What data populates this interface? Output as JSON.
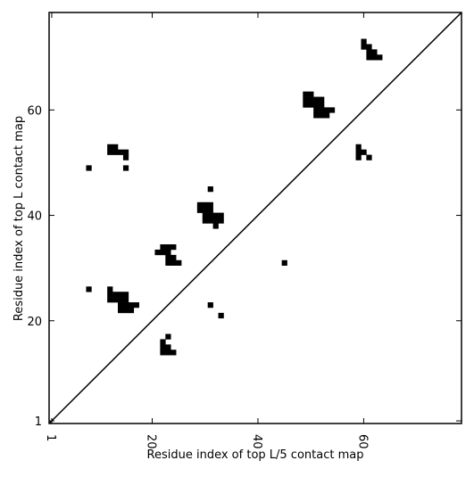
{
  "chart_data": {
    "type": "scatter",
    "marker": "square",
    "color": "#000000",
    "xlabel": "Residue index of top L/5 contact map",
    "ylabel": "Residue index of top L contact map",
    "xlim": [
      0.5,
      78.5
    ],
    "ylim": [
      0.5,
      78.5
    ],
    "xticks": [
      1,
      20,
      40,
      60
    ],
    "yticks": [
      1,
      20,
      40,
      60
    ],
    "diagonal": true,
    "x": [
      8,
      8,
      15,
      12,
      13,
      12,
      13,
      14,
      15,
      15,
      12,
      12,
      13,
      14,
      15,
      12,
      13,
      14,
      15,
      14,
      15,
      16,
      17,
      14,
      15,
      16,
      22,
      23,
      24,
      21,
      22,
      23,
      23,
      24,
      23,
      24,
      25,
      23,
      22,
      22,
      23,
      22,
      23,
      24,
      31,
      29,
      30,
      31,
      29,
      30,
      31,
      30,
      31,
      32,
      33,
      30,
      31,
      32,
      33,
      32,
      31,
      33,
      45,
      49,
      50,
      49,
      50,
      51,
      52,
      49,
      50,
      51,
      52,
      51,
      52,
      53,
      54,
      51,
      52,
      53,
      59,
      59,
      60,
      59,
      61,
      60,
      60,
      61,
      61,
      62,
      61,
      62,
      63
    ],
    "y": [
      49,
      26,
      49,
      53,
      53,
      52,
      52,
      52,
      52,
      51,
      26,
      25,
      25,
      25,
      25,
      24,
      24,
      24,
      24,
      23,
      23,
      23,
      23,
      22,
      22,
      22,
      34,
      34,
      34,
      33,
      33,
      33,
      32,
      32,
      31,
      31,
      31,
      17,
      16,
      15,
      15,
      14,
      14,
      14,
      45,
      42,
      42,
      42,
      41,
      41,
      41,
      40,
      40,
      40,
      40,
      39,
      39,
      39,
      39,
      38,
      23,
      21,
      31,
      63,
      63,
      62,
      62,
      62,
      62,
      61,
      61,
      61,
      61,
      60,
      60,
      60,
      60,
      59,
      59,
      59,
      53,
      52,
      52,
      51,
      51,
      73,
      72,
      72,
      71,
      71,
      70,
      70,
      70
    ]
  }
}
